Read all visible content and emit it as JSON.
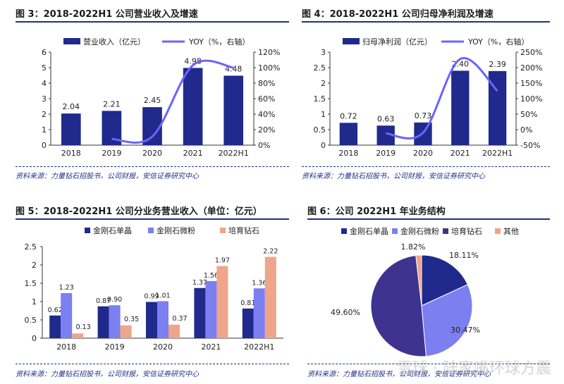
{
  "source_text": "资料来源：力量钻石招股书，公司财报，安信证券研究中心",
  "watermark": "雪球 · 陆家嘴环球方震",
  "colors": {
    "navy": "#1f2a8c",
    "lavender": "#7b7ff0",
    "salmon": "#eea58a",
    "gray": "#d9d9d9",
    "line": "#6c63ff",
    "purple": "#40338f"
  },
  "chart_data": [
    {
      "title": "图 3：2018-2022H1 公司营业收入及增速",
      "type": "bar",
      "categories": [
        "2018",
        "2019",
        "2020",
        "2021",
        "2022H1"
      ],
      "series": [
        {
          "name": "营业收入（亿元）",
          "values": [
            2.04,
            2.21,
            2.45,
            4.98,
            4.48
          ]
        },
        {
          "name": "YOY（%，右轴）",
          "values": [
            null,
            8,
            11,
            103,
            100
          ]
        }
      ],
      "bar_labels": [
        "2.04",
        "2.21",
        "2.45",
        "4.98",
        "4.48"
      ],
      "ylim": [
        0,
        6
      ],
      "yticks": [
        "0",
        "1",
        "2",
        "3",
        "4",
        "5",
        "6"
      ],
      "y2lim": [
        0,
        120
      ],
      "y2ticks": [
        "0%",
        "20%",
        "40%",
        "60%",
        "80%",
        "100%",
        "120%"
      ]
    },
    {
      "title": "图 4：2018-2022H1 公司归母净利润及增速",
      "type": "bar",
      "categories": [
        "2018",
        "2019",
        "2020",
        "2021",
        "2022H1"
      ],
      "series": [
        {
          "name": "归母净利润（亿元）",
          "values": [
            0.72,
            0.63,
            0.73,
            2.4,
            2.39
          ]
        },
        {
          "name": "YOY（%，右轴）",
          "values": [
            null,
            -12,
            -10,
            228,
            125
          ]
        }
      ],
      "bar_labels": [
        "0.72",
        "0.63",
        "0.73",
        "2.40",
        "2.39"
      ],
      "ylim": [
        0,
        3
      ],
      "yticks": [
        "0",
        "0.5",
        "1",
        "1.5",
        "2",
        "2.5",
        "3"
      ],
      "y2lim": [
        -50,
        250
      ],
      "y2ticks": [
        "-50%",
        "0%",
        "50%",
        "100%",
        "150%",
        "200%",
        "250%"
      ]
    },
    {
      "title": "图 5：2018-2022H1 公司分业务营业收入（单位：亿元）",
      "type": "bar",
      "categories": [
        "2018",
        "2019",
        "2020",
        "2021",
        "2022H1"
      ],
      "series": [
        {
          "name": "金刚石单晶",
          "values": [
            0.62,
            0.87,
            0.99,
            1.37,
            0.81
          ]
        },
        {
          "name": "金刚石微粉",
          "values": [
            1.23,
            0.9,
            1.01,
            1.56,
            1.36
          ]
        },
        {
          "name": "培育钻石",
          "values": [
            0.13,
            0.35,
            0.37,
            1.97,
            2.22
          ]
        }
      ],
      "labels": [
        [
          "0.62",
          "0.87",
          "0.99",
          "1.37",
          "0.81"
        ],
        [
          "1.23",
          "0.90",
          "1.01",
          "1.56",
          "1.36"
        ],
        [
          "0.13",
          "0.35",
          "0.37",
          "1.97",
          "2.22"
        ]
      ],
      "ylim": [
        0,
        2.5
      ],
      "yticks": [
        "0",
        "0.5",
        "1",
        "1.5",
        "2",
        "2.5"
      ]
    },
    {
      "title": "图 6：公司 2022H1 年业务结构",
      "type": "pie",
      "legend": [
        "金刚石单晶",
        "金刚石微粉",
        "培育钻石",
        "其他"
      ],
      "values": [
        18.11,
        30.47,
        49.6,
        1.82
      ],
      "labels": [
        "18.11%",
        "30.47%",
        "49.60%",
        "1.82%"
      ]
    }
  ]
}
